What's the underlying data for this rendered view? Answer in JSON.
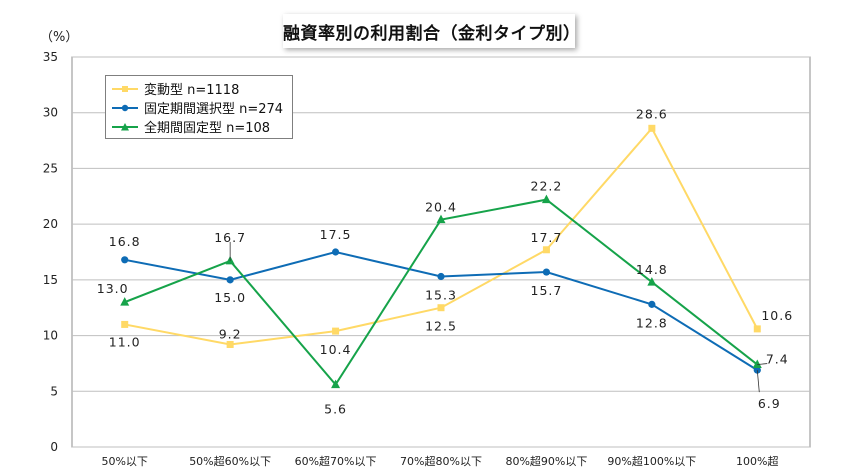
{
  "chart_data": {
    "type": "line",
    "title": "融資率別の利用割合（金利タイプ別）",
    "unit_label": "（%）",
    "xlabel": "",
    "ylabel": "",
    "categories": [
      "50%以下",
      "50%超60%以下",
      "60%超70%以下",
      "70%超80%以下",
      "80%超90%以下",
      "90%超100%以下",
      "100%超"
    ],
    "ylim": [
      0,
      35
    ],
    "yticks": [
      0,
      5,
      10,
      15,
      20,
      25,
      30,
      35
    ],
    "grid": true,
    "legend_position": "top-left",
    "series": [
      {
        "name": "変動型 n=1118",
        "color": "#ffd966",
        "marker": "square",
        "values": [
          11.0,
          9.2,
          10.4,
          12.5,
          17.7,
          28.6,
          10.6
        ],
        "labels": [
          "11.0",
          "9.2",
          "10.4",
          "12.5",
          "17.7",
          "28.6",
          "10.6"
        ]
      },
      {
        "name": "固定期間選択型 n=274",
        "color": "#0e6cb5",
        "marker": "circle",
        "values": [
          16.8,
          15.0,
          17.5,
          15.3,
          15.7,
          12.8,
          6.9
        ],
        "labels": [
          "16.8",
          "15.0",
          "17.5",
          "15.3",
          "15.7",
          "12.8",
          "6.9"
        ]
      },
      {
        "name": "全期間固定型 n=108",
        "color": "#16a34a",
        "marker": "triangle",
        "values": [
          13.0,
          16.7,
          5.6,
          20.4,
          22.2,
          14.8,
          7.4
        ],
        "labels": [
          "13.0",
          "16.7",
          "5.6",
          "20.4",
          "22.2",
          "14.8",
          "7.4"
        ]
      }
    ]
  }
}
